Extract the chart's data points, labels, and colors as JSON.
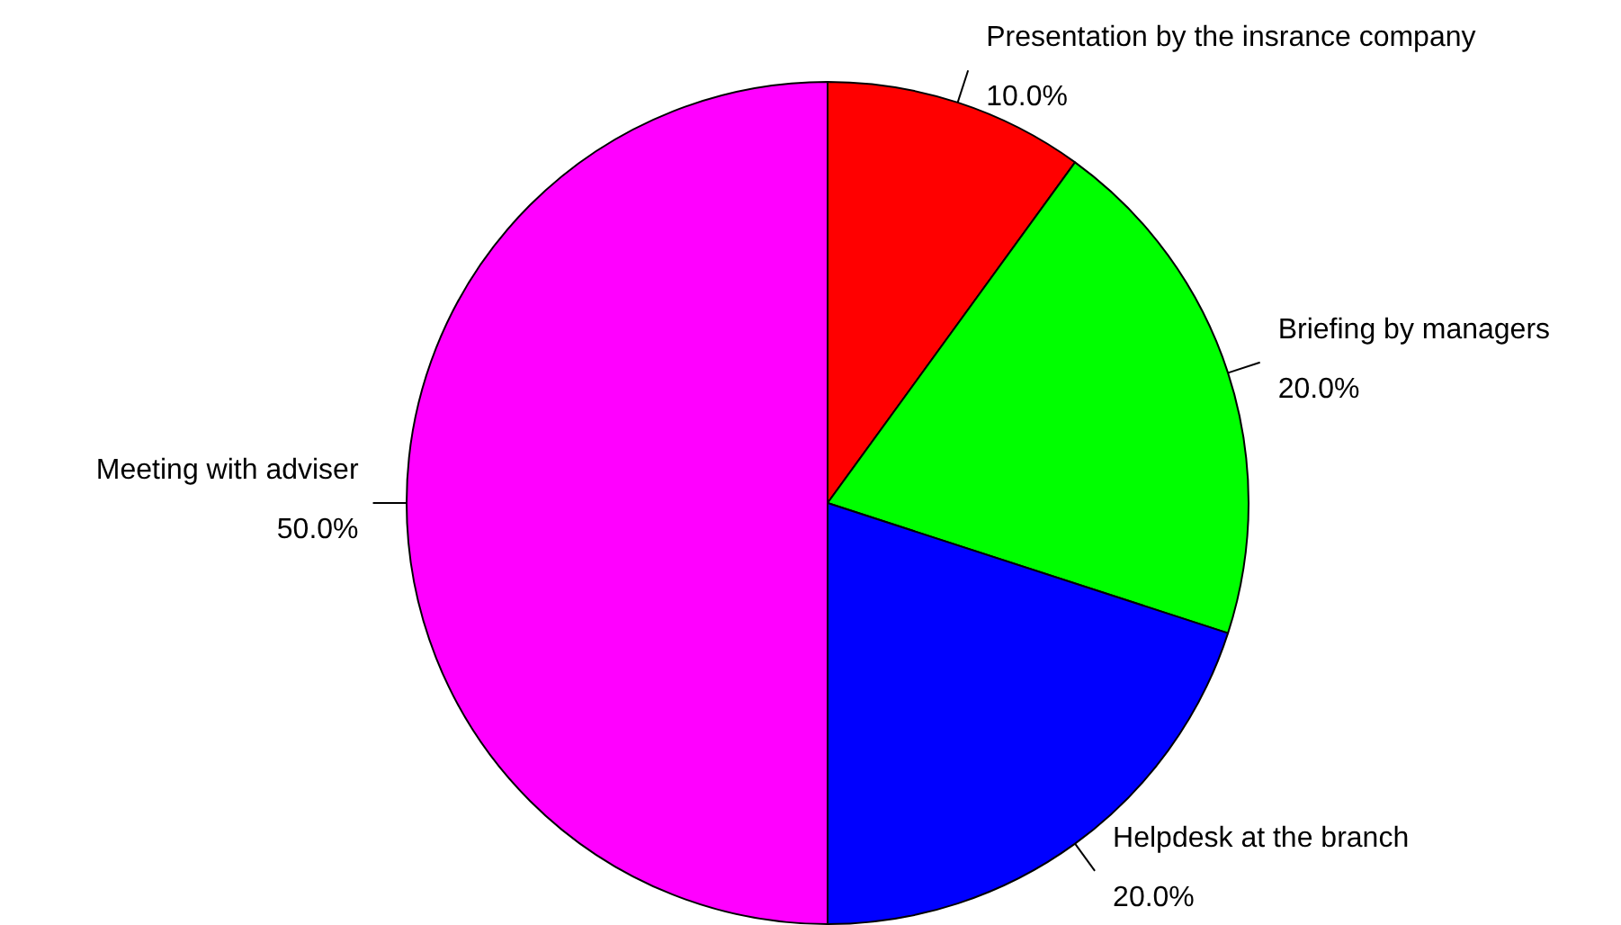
{
  "chart_data": {
    "type": "pie",
    "categories": [
      "Presentation by the insrance company",
      "Briefing by managers",
      "Helpdesk at the branch",
      "Meeting with adviser"
    ],
    "values": [
      10,
      20,
      20,
      50
    ],
    "value_labels": [
      "10.0%",
      "20.0%",
      "20.0%",
      "50.0%"
    ],
    "colors": [
      "#ff0000",
      "#00ff00",
      "#0000ff",
      "#ff00ff"
    ],
    "legend": false
  }
}
